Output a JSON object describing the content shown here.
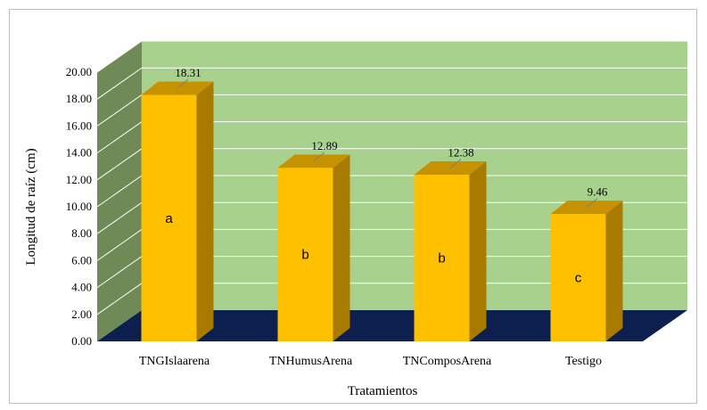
{
  "chart_data": {
    "type": "bar",
    "categories": [
      "TNGIslaarena",
      "TNHumusArena",
      "TNComposArena",
      "Testigo"
    ],
    "values": [
      18.31,
      12.89,
      12.38,
      9.46
    ],
    "value_labels": [
      "18.31",
      "12.89",
      "12.38",
      "9.46"
    ],
    "group_letters": [
      "a",
      "b",
      "b",
      "c"
    ],
    "xlabel": "Tratamientos",
    "ylabel": "Longitud de raíz  (cm)",
    "ylim": [
      0,
      20
    ],
    "yticks": [
      "0.00",
      "2.00",
      "4.00",
      "6.00",
      "8.00",
      "10.00",
      "12.00",
      "14.00",
      "16.00",
      "18.00",
      "20.00"
    ],
    "style": "3d-column",
    "grid": true,
    "legend": "none",
    "colors": {
      "bar_front": "#ffc000",
      "bar_side": "#a87a00",
      "bar_top": "#c69200",
      "back_wall": "#a9d18e",
      "side_wall": "#6f8a56",
      "floor": "#0c1f4e",
      "grid": "#ffffff"
    }
  }
}
